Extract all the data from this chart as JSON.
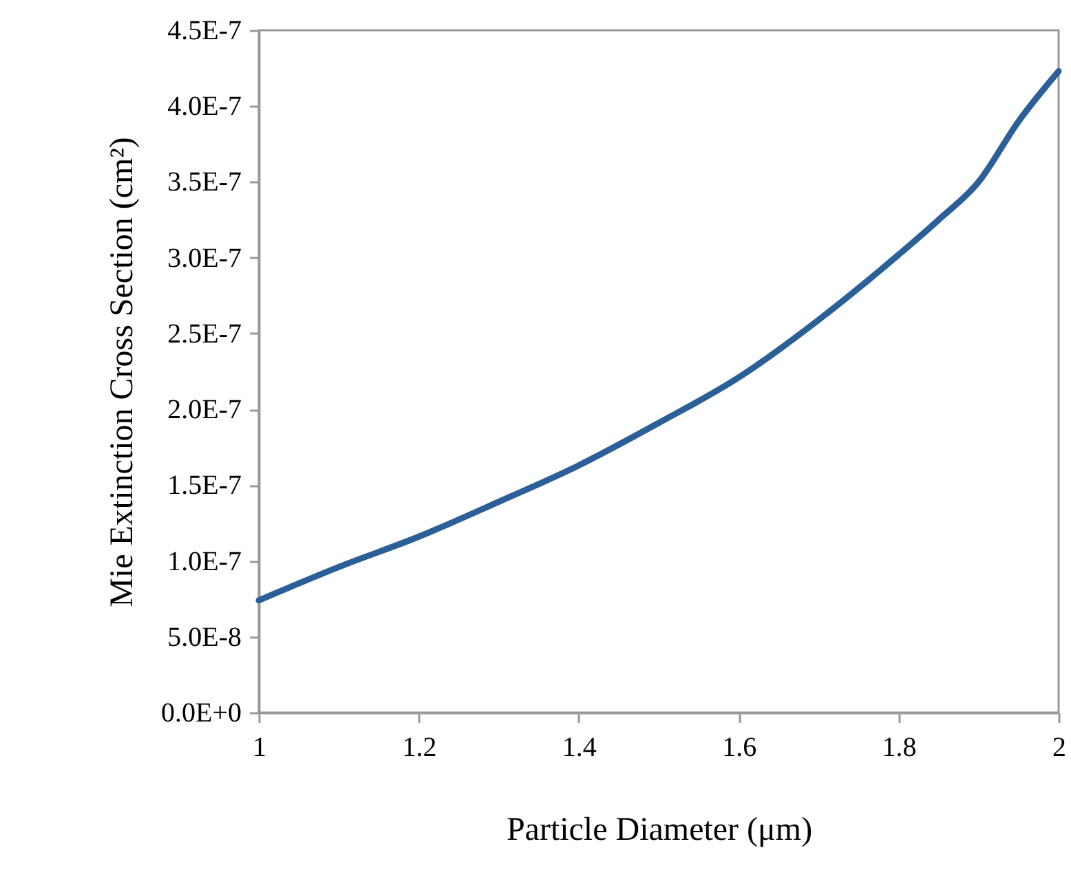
{
  "chart_data": {
    "type": "line",
    "xlabel": "Particle Diameter (μm)",
    "ylabel": "Mie Extinction Cross Section (cm²)",
    "x": [
      1,
      1.1,
      1.2,
      1.3,
      1.4,
      1.5,
      1.6,
      1.7,
      1.75,
      1.8,
      1.85,
      1.9,
      1.95,
      2
    ],
    "series": [
      {
        "color": "#2b5f98",
        "values": [
          7.4e-08,
          9.6e-08,
          1.16e-07,
          1.39e-07,
          1.63e-07,
          1.91e-07,
          2.21e-07,
          2.59e-07,
          2.8e-07,
          3.02e-07,
          3.25e-07,
          3.5e-07,
          3.9e-07,
          4.23e-07
        ]
      }
    ],
    "xlim": [
      1,
      2
    ],
    "xticks": [
      1,
      1.2,
      1.4,
      1.6,
      1.8,
      2
    ],
    "ylim": [
      0,
      4.5e-07
    ],
    "yticks": [
      {
        "value": 0,
        "label": "0.0E+0"
      },
      {
        "value": 5e-08,
        "label": "5.0E-8"
      },
      {
        "value": 1e-07,
        "label": "1.0E-7"
      },
      {
        "value": 1.5e-07,
        "label": "1.5E-7"
      },
      {
        "value": 2e-07,
        "label": "2.0E-7"
      },
      {
        "value": 2.5e-07,
        "label": "2.5E-7"
      },
      {
        "value": 3e-07,
        "label": "3.0E-7"
      },
      {
        "value": 3.5e-07,
        "label": "3.5E-7"
      },
      {
        "value": 4e-07,
        "label": "4.0E-7"
      },
      {
        "value": 4.5e-07,
        "label": "4.5E-7"
      }
    ],
    "grid": false,
    "marker": "none",
    "line_style": "solid"
  }
}
